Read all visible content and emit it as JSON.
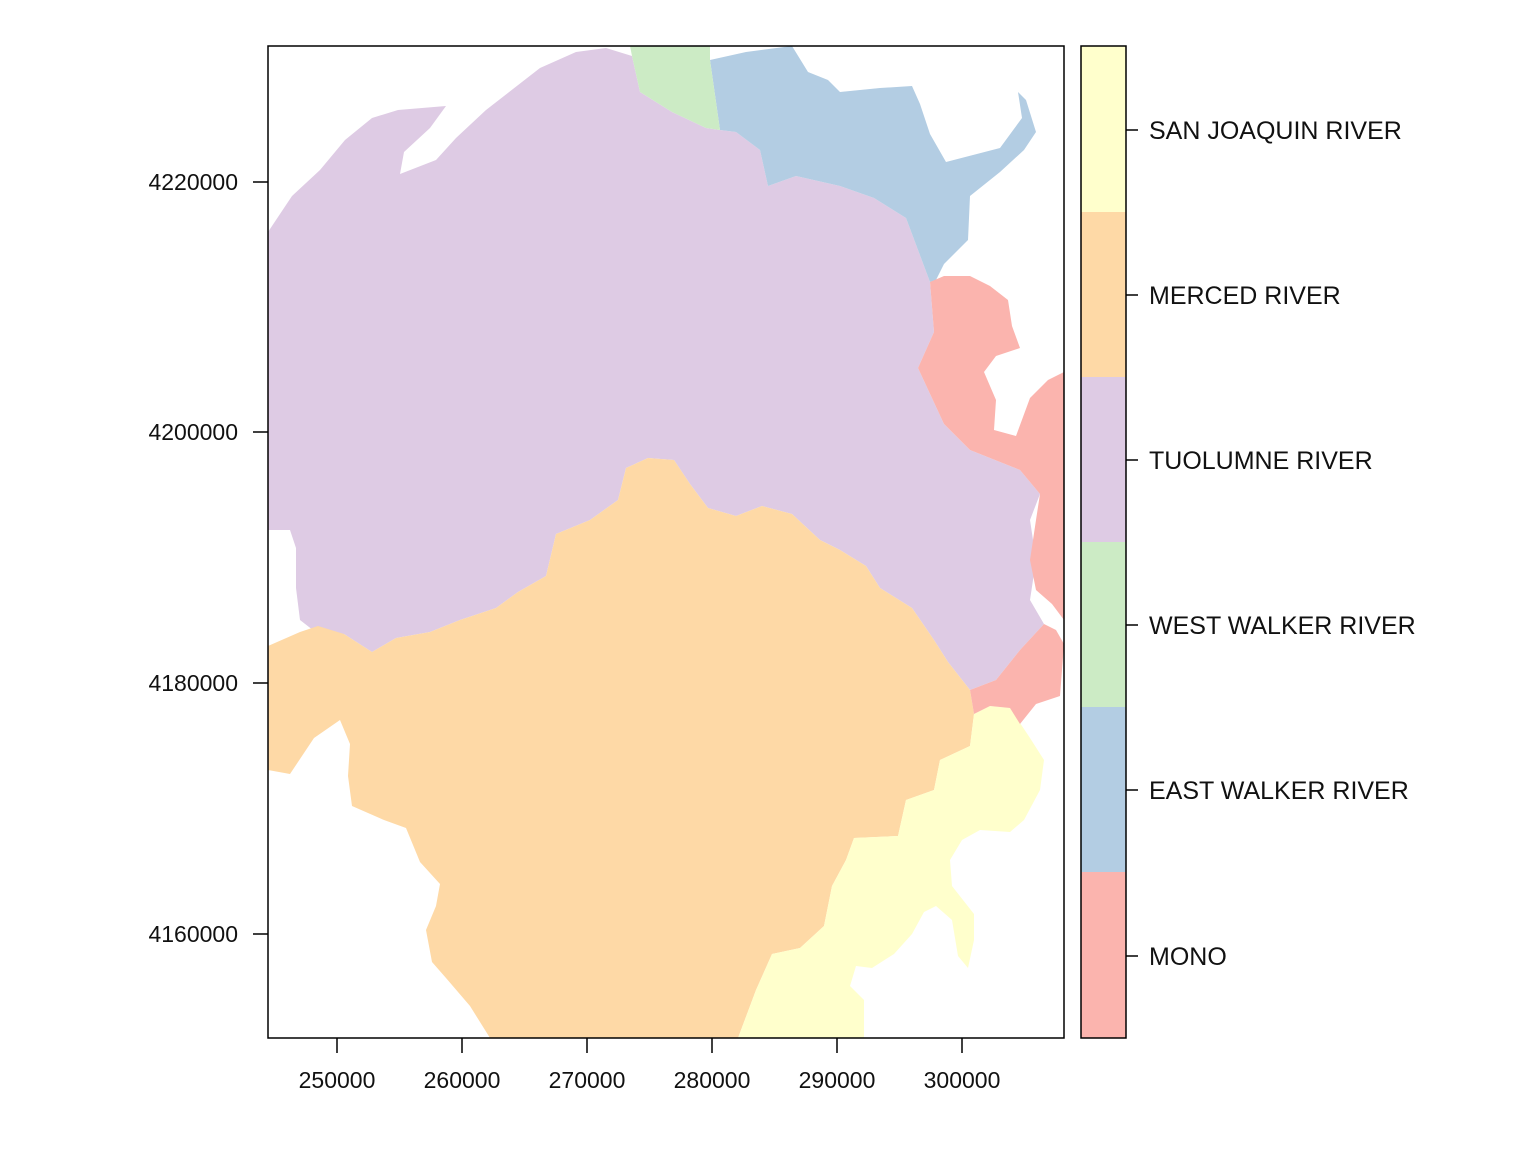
{
  "map": {
    "type": "categorical-raster",
    "x_range": [
      244400,
      308000
    ],
    "y_range": [
      4152000,
      4231000
    ],
    "x_ticks": [
      "250000",
      "260000",
      "270000",
      "280000",
      "290000",
      "300000"
    ],
    "y_ticks": [
      "4160000",
      "4180000",
      "4200000",
      "4220000"
    ]
  },
  "legend": {
    "items": [
      {
        "label": "SAN JOAQUIN RIVER",
        "color": "#FFFFCC"
      },
      {
        "label": "MERCED RIVER",
        "color": "#FED9A6"
      },
      {
        "label": "TUOLUMNE RIVER",
        "color": "#DECBE4"
      },
      {
        "label": "WEST WALKER RIVER",
        "color": "#CCEBC5"
      },
      {
        "label": "EAST WALKER RIVER",
        "color": "#B3CDE3"
      },
      {
        "label": "MONO",
        "color": "#FBB4AE"
      }
    ]
  },
  "regions": [
    {
      "name": "TUOLUMNE RIVER",
      "color": "#DECBE4"
    },
    {
      "name": "MERCED RIVER",
      "color": "#FED9A6"
    },
    {
      "name": "SAN JOAQUIN RIVER",
      "color": "#FFFFCC"
    },
    {
      "name": "EAST WALKER RIVER",
      "color": "#B3CDE3"
    },
    {
      "name": "WEST WALKER RIVER",
      "color": "#CCEBC5"
    },
    {
      "name": "MONO",
      "color": "#FBB4AE"
    }
  ]
}
